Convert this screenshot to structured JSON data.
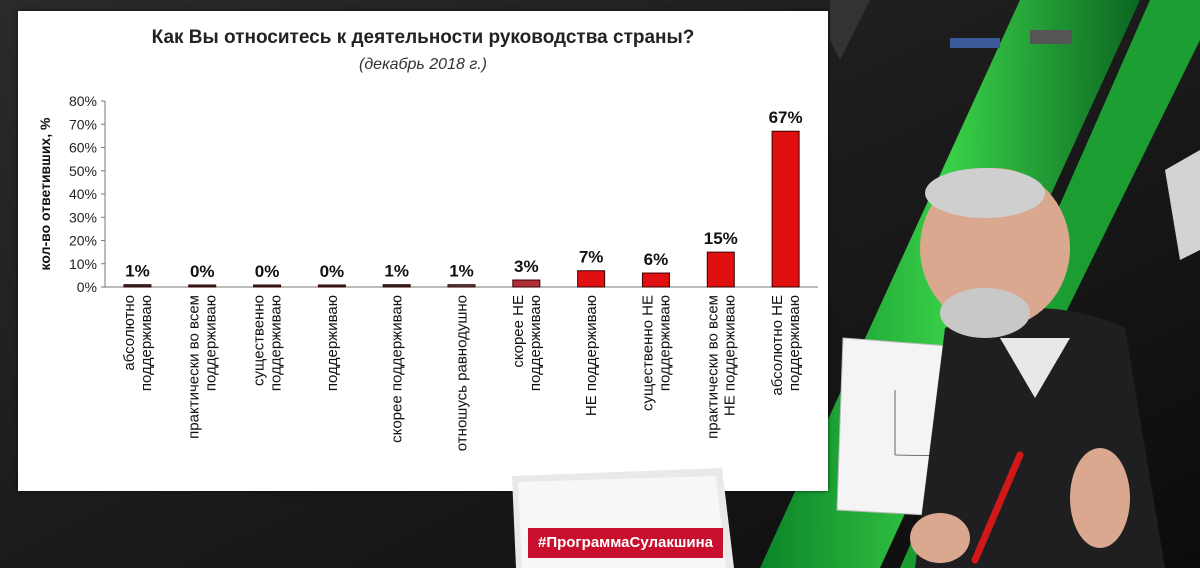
{
  "chart_data": {
    "type": "bar",
    "title": "Как Вы относитесь к деятельности руководства страны?",
    "subtitle": "(декабрь 2018 г.)",
    "ylabel": "кол-во ответивших, %",
    "xlabel": "",
    "ylim": [
      0,
      80
    ],
    "yticks": [
      "0%",
      "10%",
      "20%",
      "30%",
      "40%",
      "50%",
      "60%",
      "70%",
      "80%"
    ],
    "grid": false,
    "categories": [
      [
        "абсолютно",
        "поддерживаю"
      ],
      [
        "практически во всем",
        "поддерживаю"
      ],
      [
        "существенно",
        "поддерживаю"
      ],
      [
        "поддерживаю"
      ],
      [
        "скорее поддерживаю"
      ],
      [
        "отношусь равнодушно"
      ],
      [
        "скорее НЕ",
        "поддерживаю"
      ],
      [
        "НЕ поддерживаю"
      ],
      [
        "существенно НЕ",
        "поддерживаю"
      ],
      [
        "практически во всем",
        "НЕ поддерживаю"
      ],
      [
        "абсолютно НЕ",
        "поддерживаю"
      ]
    ],
    "values": [
      1,
      0,
      0,
      0,
      1,
      1,
      3,
      7,
      6,
      15,
      67
    ],
    "value_labels": [
      "1%",
      "0%",
      "0%",
      "0%",
      "1%",
      "1%",
      "3%",
      "7%",
      "6%",
      "15%",
      "67%"
    ],
    "colors": {
      "support": "#2b2b2b",
      "neutral": "#4a4a4a",
      "weak_oppose": "#b0303a",
      "oppose": "#e01010",
      "bar_border": "#3a0000"
    },
    "color_keys": [
      "support",
      "support",
      "support",
      "support",
      "support",
      "neutral",
      "weak_oppose",
      "oppose",
      "oppose",
      "oppose",
      "oppose"
    ]
  },
  "overlay": {
    "laptop_label": "#ПрограммаСулакшина"
  }
}
